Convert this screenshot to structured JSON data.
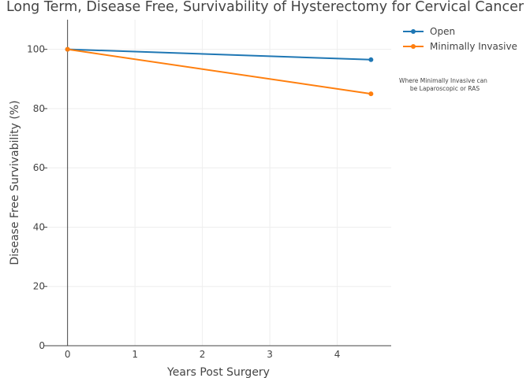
{
  "chart_data": {
    "type": "line",
    "title": "Long Term, Disease Free, Survivability of Hysterectomy for Cervical Cancer",
    "xlabel": "Years Post Surgery",
    "ylabel": "Disease Free Survivability (%)",
    "xlim": [
      -0.3,
      4.8
    ],
    "ylim": [
      0,
      110
    ],
    "xticks": [
      0,
      1,
      2,
      3,
      4
    ],
    "yticks": [
      0,
      20,
      40,
      60,
      80,
      100
    ],
    "grid": true,
    "legend_position": "top-right",
    "series": [
      {
        "name": "Open",
        "color": "#1f77b4",
        "x": [
          0,
          4.5
        ],
        "y": [
          100,
          96.5
        ]
      },
      {
        "name": "Minimally Invasive",
        "color": "#ff7f0e",
        "x": [
          0,
          4.5
        ],
        "y": [
          100,
          85
        ]
      }
    ],
    "annotations": [
      "Where Minimally Invasive can",
      "be Laparoscopic or RAS"
    ]
  }
}
